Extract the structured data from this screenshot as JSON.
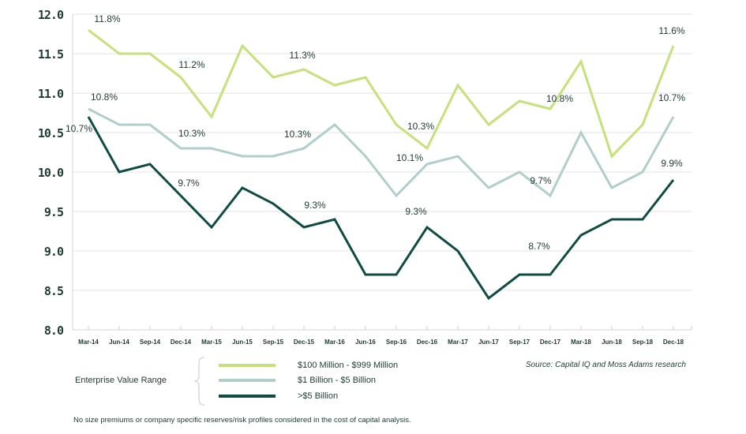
{
  "chart_data": {
    "type": "line",
    "categories": [
      "Mar-14",
      "Jun-14",
      "Sep-14",
      "Dec-14",
      "Mar-15",
      "Jun-15",
      "Sep-15",
      "Dec-15",
      "Mar-16",
      "Jun-16",
      "Sep-16",
      "Dec-16",
      "Mar-17",
      "Jun-17",
      "Sep-17",
      "Dec-17",
      "Mar-18",
      "Jun-18",
      "Sep-18",
      "Dec-18"
    ],
    "ylim": [
      8.0,
      12.0
    ],
    "yticks": [
      "8.0",
      "8.5",
      "9.0",
      "9.5",
      "10.0",
      "10.5",
      "11.0",
      "11.5",
      "12.0"
    ],
    "grid": true,
    "series": [
      {
        "name": "$100 Million - $999 Million",
        "color": "#c5e27a",
        "values": [
          11.8,
          11.5,
          11.5,
          11.2,
          10.7,
          11.6,
          11.2,
          11.3,
          11.1,
          11.2,
          10.6,
          10.3,
          11.1,
          10.6,
          10.9,
          10.8,
          11.4,
          10.2,
          10.6,
          11.6
        ]
      },
      {
        "name": "$1 Billion - $5 Billion",
        "color": "#b0cfc9",
        "values": [
          10.8,
          10.6,
          10.6,
          10.3,
          10.3,
          10.2,
          10.2,
          10.3,
          10.6,
          10.2,
          9.7,
          10.1,
          10.2,
          9.8,
          10.0,
          9.7,
          10.5,
          9.8,
          10.0,
          10.7
        ]
      },
      {
        "name": ">$5 Billion",
        "color": "#0f4c42",
        "values": [
          10.7,
          10.0,
          10.1,
          9.7,
          9.3,
          9.8,
          9.6,
          9.3,
          9.4,
          8.7,
          8.7,
          9.3,
          9.0,
          8.4,
          8.7,
          8.7,
          9.2,
          9.4,
          9.4,
          9.9
        ]
      }
    ],
    "annotations": [
      {
        "series": 0,
        "index": 0,
        "text": "11.8%"
      },
      {
        "series": 0,
        "index": 3,
        "text": "11.2%"
      },
      {
        "series": 0,
        "index": 7,
        "text": "11.3%"
      },
      {
        "series": 0,
        "index": 11,
        "text": "10.3%"
      },
      {
        "series": 0,
        "index": 15,
        "text": "10.8%"
      },
      {
        "series": 0,
        "index": 19,
        "text": "11.6%"
      },
      {
        "series": 1,
        "index": 0,
        "text": "10.8%"
      },
      {
        "series": 1,
        "index": 3,
        "text": "10.3%"
      },
      {
        "series": 1,
        "index": 7,
        "text": "10.3%"
      },
      {
        "series": 1,
        "index": 11,
        "text": "10.1%"
      },
      {
        "series": 1,
        "index": 15,
        "text": "9.7%"
      },
      {
        "series": 1,
        "index": 19,
        "text": "10.7%"
      },
      {
        "series": 2,
        "index": 0,
        "text": "10.7%"
      },
      {
        "series": 2,
        "index": 3,
        "text": "9.7%"
      },
      {
        "series": 2,
        "index": 7,
        "text": "9.3%"
      },
      {
        "series": 2,
        "index": 11,
        "text": "9.3%"
      },
      {
        "series": 2,
        "index": 15,
        "text": "8.7%"
      },
      {
        "series": 2,
        "index": 19,
        "text": "9.9%"
      }
    ]
  },
  "legend": {
    "title": "Enterprise Value Range",
    "items": [
      {
        "label": "$100 Million - $999 Million",
        "color": "#c5e27a"
      },
      {
        "label": "$1 Billion - $5 Billion",
        "color": "#b0cfc9"
      },
      {
        "label": ">$5 Billion",
        "color": "#0f4c42"
      }
    ]
  },
  "source": "Source: Capital IQ and Moss Adams research",
  "footnote": "No size premiums or company specific reserves/risk profiles considered in the cost of capital analysis."
}
